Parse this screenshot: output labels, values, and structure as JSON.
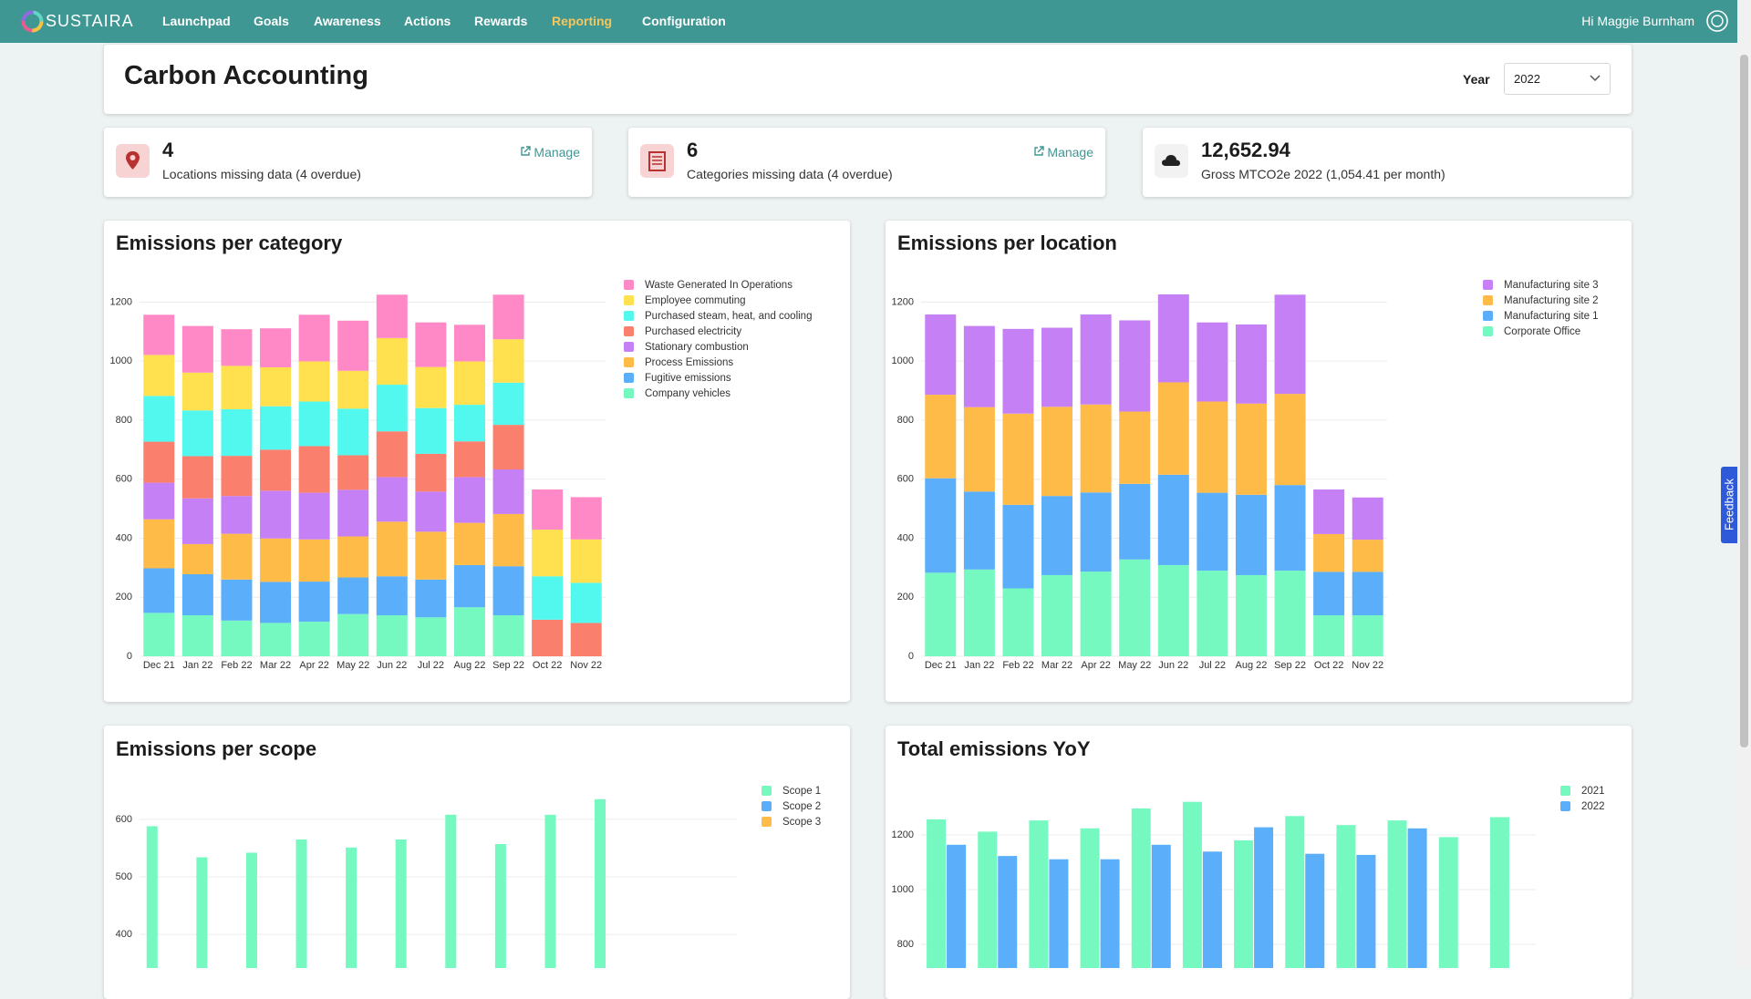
{
  "nav": {
    "brand": "SUSTAIRA",
    "items": [
      {
        "label": "Launchpad"
      },
      {
        "label": "Goals"
      },
      {
        "label": "Awareness"
      },
      {
        "label": "Actions"
      },
      {
        "label": "Rewards"
      },
      {
        "label": "Reporting",
        "active": true
      },
      {
        "label": "Configuration"
      }
    ],
    "greeting": "Hi Maggie Burnham"
  },
  "header": {
    "title": "Carbon Accounting",
    "year_label": "Year",
    "year": "2022"
  },
  "cards": [
    {
      "value": "4",
      "text": "Locations missing data (4 overdue)",
      "link": "Manage"
    },
    {
      "value": "6",
      "text": "Categories missing data (4 overdue)",
      "link": "Manage"
    },
    {
      "value": "12,652.94",
      "text": "Gross MTCO2e 2022 (1,054.41 per month)"
    }
  ],
  "feedback": "Feedback",
  "chart_data": [
    {
      "type": "bar",
      "stacked": true,
      "title": "Emissions per category",
      "categories": [
        "Dec 21",
        "Jan 22",
        "Feb 22",
        "Mar 22",
        "Apr 22",
        "May 22",
        "Jun 22",
        "Jul 22",
        "Aug 22",
        "Sep 22",
        "Oct 22",
        "Nov 22"
      ],
      "series": [
        {
          "name": "Waste Generated In Operations",
          "color": "#ff88c6",
          "values": [
            136,
            158,
            124,
            132,
            158,
            170,
            147,
            151,
            124,
            151,
            136,
            143
          ]
        },
        {
          "name": "Employee commuting",
          "color": "#ffe04f",
          "values": [
            139,
            128,
            147,
            132,
            136,
            128,
            158,
            139,
            147,
            147,
            158,
            147
          ]
        },
        {
          "name": "Purchased steam, heat, and cooling",
          "color": "#52f7ee",
          "values": [
            155,
            155,
            158,
            147,
            151,
            158,
            158,
            155,
            124,
            143,
            147,
            136
          ]
        },
        {
          "name": "Purchased electricity",
          "color": "#fa7f6c",
          "values": [
            139,
            143,
            136,
            139,
            158,
            117,
            155,
            128,
            121,
            151,
            124,
            113
          ]
        },
        {
          "name": "Stationary combustion",
          "color": "#c680f5",
          "values": [
            124,
            155,
            128,
            162,
            158,
            158,
            151,
            136,
            155,
            151,
            0,
            0
          ]
        },
        {
          "name": "Process Emissions",
          "color": "#ffbb47",
          "values": [
            166,
            102,
            155,
            147,
            143,
            139,
            185,
            162,
            143,
            177,
            0,
            0
          ]
        },
        {
          "name": "Fugitive emissions",
          "color": "#5aaefa",
          "values": [
            151,
            139,
            139,
            139,
            136,
            124,
            132,
            128,
            143,
            166,
            0,
            0
          ]
        },
        {
          "name": "Company vehicles",
          "color": "#75f9c0",
          "values": [
            147,
            139,
            121,
            113,
            117,
            143,
            139,
            132,
            166,
            139,
            0,
            0
          ]
        }
      ],
      "ylim": [
        0,
        1300
      ],
      "yticks": [
        0,
        200,
        400,
        600,
        800,
        1000,
        1200
      ],
      "grid": true
    },
    {
      "type": "bar",
      "stacked": true,
      "title": "Emissions per location",
      "categories": [
        "Dec 21",
        "Jan 22",
        "Feb 22",
        "Mar 22",
        "Apr 22",
        "May 22",
        "Jun 22",
        "Jul 22",
        "Aug 22",
        "Sep 22",
        "Oct 22",
        "Nov 22"
      ],
      "series": [
        {
          "name": "Manufacturing site 3",
          "color": "#c680f5",
          "values": [
            272,
            275,
            287,
            268,
            305,
            309,
            298,
            268,
            268,
            336,
            151,
            143
          ]
        },
        {
          "name": "Manufacturing site 2",
          "color": "#ffbb47",
          "values": [
            283,
            286,
            309,
            302,
            298,
            245,
            313,
            309,
            309,
            309,
            128,
            109
          ]
        },
        {
          "name": "Manufacturing site 1",
          "color": "#5aaefa",
          "values": [
            320,
            264,
            283,
            268,
            268,
            256,
            306,
            264,
            272,
            290,
            147,
            147
          ]
        },
        {
          "name": "Corporate Office",
          "color": "#75f9c0",
          "values": [
            283,
            294,
            230,
            275,
            287,
            328,
            309,
            290,
            275,
            290,
            139,
            139
          ]
        }
      ],
      "ylim": [
        0,
        1300
      ],
      "yticks": [
        0,
        200,
        400,
        600,
        800,
        1000,
        1200
      ],
      "grid": true
    },
    {
      "type": "bar",
      "stacked": false,
      "title": "Emissions per scope",
      "series": [
        {
          "name": "Scope 1",
          "color": "#75f9c0",
          "values": [
            588,
            534,
            542,
            565,
            551,
            565,
            608,
            557,
            608,
            635,
            null,
            null
          ]
        },
        {
          "name": "Scope 2",
          "color": "#5aaefa",
          "values": [
            null,
            null,
            null,
            null,
            null,
            null,
            null,
            null,
            null,
            null,
            null,
            null
          ]
        },
        {
          "name": "Scope 3",
          "color": "#ffbb47",
          "values": [
            null,
            null,
            null,
            null,
            null,
            null,
            null,
            null,
            null,
            null,
            null,
            null
          ]
        }
      ],
      "ylim": [
        340,
        660
      ],
      "yticks": [
        400,
        500,
        600
      ],
      "grid": true
    },
    {
      "type": "bar",
      "stacked": false,
      "title": "Total emissions YoY",
      "series": [
        {
          "name": "2021",
          "color": "#75f9c0",
          "values": [
            1257,
            1212,
            1253,
            1224,
            1297,
            1321,
            1180,
            1269,
            1236,
            1253,
            1192,
            1265
          ]
        },
        {
          "name": "2022",
          "color": "#5aaefa",
          "values": [
            1164,
            1123,
            1111,
            1111,
            1164,
            1139,
            1228,
            1131,
            1127,
            1224,
            null,
            null
          ]
        }
      ],
      "ylim": [
        710,
        1340
      ],
      "yticks": [
        800,
        1000,
        1200
      ],
      "grid": true
    }
  ]
}
